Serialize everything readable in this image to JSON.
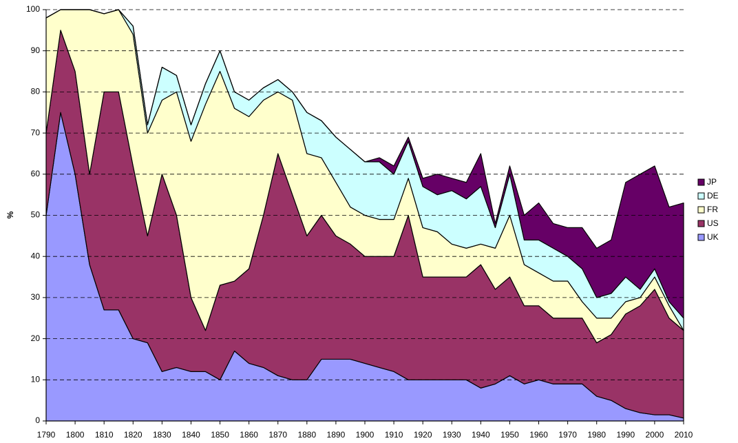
{
  "chart_data": {
    "type": "stacked-area",
    "y_label": "%",
    "x": [
      1790,
      1795,
      1800,
      1805,
      1810,
      1815,
      1820,
      1825,
      1830,
      1835,
      1840,
      1845,
      1850,
      1855,
      1860,
      1865,
      1870,
      1875,
      1880,
      1885,
      1890,
      1895,
      1900,
      1905,
      1910,
      1915,
      1920,
      1925,
      1930,
      1935,
      1940,
      1945,
      1950,
      1955,
      1960,
      1965,
      1970,
      1975,
      1980,
      1985,
      1990,
      1995,
      2000,
      2005,
      2010
    ],
    "series": [
      {
        "name": "UK",
        "color": "#9999ff",
        "values": [
          50,
          75,
          60,
          38,
          27,
          27,
          20,
          19,
          12,
          13,
          12,
          12,
          10,
          17,
          14,
          13,
          11,
          10,
          10,
          15,
          15,
          15,
          14,
          13,
          12,
          10,
          10,
          10,
          10,
          10,
          8,
          9,
          11,
          9,
          10,
          9,
          9,
          9,
          6,
          5,
          3,
          2,
          1.5,
          1.5,
          0.7
        ]
      },
      {
        "name": "US",
        "color": "#993366",
        "values": [
          20,
          20,
          25,
          22,
          53,
          53,
          42,
          26,
          48,
          37,
          18,
          10,
          23,
          17,
          23,
          37,
          54,
          45,
          35,
          35,
          30,
          28,
          26,
          27,
          28,
          40,
          25,
          25,
          25,
          25,
          30,
          23,
          24,
          19,
          18,
          16,
          16,
          16,
          13,
          16,
          23,
          26,
          30.5,
          23.5,
          21.3
        ]
      },
      {
        "name": "FR",
        "color": "#ffffcc",
        "values": [
          28,
          5,
          15,
          40,
          19,
          20,
          32,
          25,
          18,
          30,
          38,
          55,
          52,
          42,
          37,
          28,
          15,
          23,
          20,
          14,
          13,
          9,
          10,
          9,
          9,
          9,
          12,
          11,
          8,
          7,
          5,
          10,
          15,
          10,
          8,
          9,
          9,
          4,
          6,
          4,
          3,
          2,
          3,
          3,
          0
        ]
      },
      {
        "name": "DE",
        "color": "#ccffff",
        "values": [
          0,
          0,
          0,
          0,
          0,
          0,
          2,
          2,
          8,
          4,
          4,
          5,
          5,
          4,
          4,
          3,
          3,
          2,
          10,
          9,
          11,
          14,
          13,
          14,
          11,
          9,
          10,
          9,
          13,
          12,
          14,
          5,
          10,
          6,
          8,
          8,
          6,
          8,
          5,
          6,
          6,
          2,
          2,
          1,
          3
        ]
      },
      {
        "name": "JP",
        "color": "#660066",
        "values": [
          0,
          0,
          0,
          0,
          0,
          0,
          0,
          0,
          0,
          0,
          0,
          0,
          0,
          0,
          0,
          0,
          0,
          0,
          0,
          0,
          0,
          0,
          0,
          1,
          2,
          1,
          2,
          5,
          3,
          4,
          8,
          1,
          2,
          6,
          9,
          6,
          7,
          10,
          12,
          13,
          23,
          28,
          25,
          23,
          28
        ]
      }
    ],
    "xlim": [
      1790,
      2010
    ],
    "xticks": [
      1790,
      1800,
      1810,
      1820,
      1830,
      1840,
      1850,
      1860,
      1870,
      1880,
      1890,
      1900,
      1910,
      1920,
      1930,
      1940,
      1950,
      1960,
      1970,
      1980,
      1990,
      2000,
      2010
    ],
    "ylim": [
      0,
      100
    ],
    "yticks": [
      0,
      10,
      20,
      30,
      40,
      50,
      60,
      70,
      80,
      90,
      100
    ],
    "grid": true,
    "legend": "right"
  }
}
